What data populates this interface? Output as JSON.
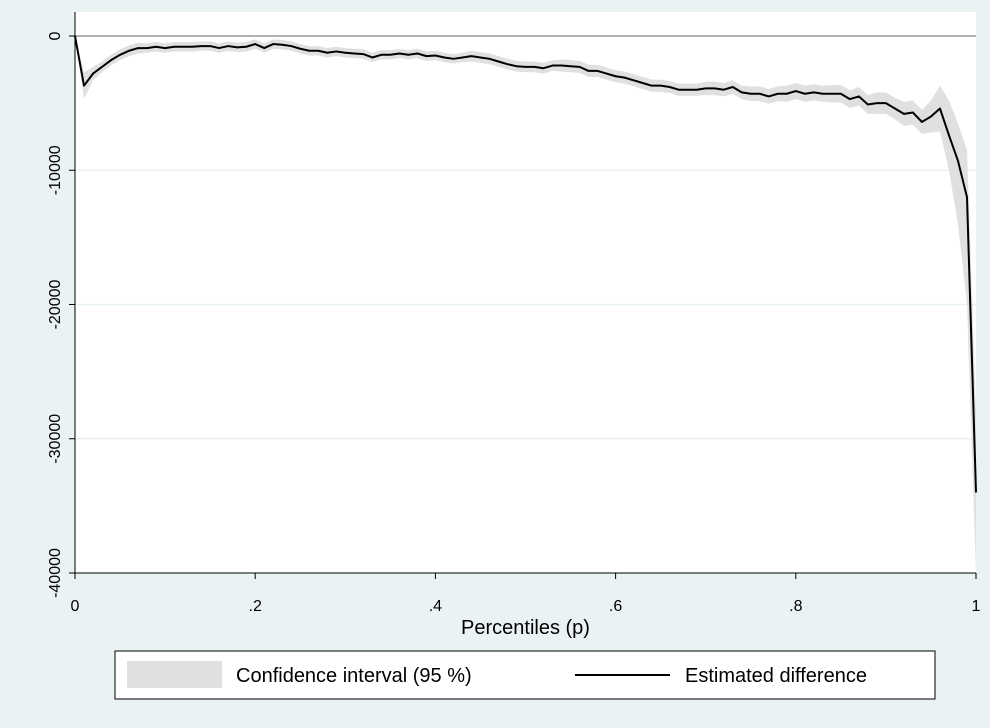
{
  "chart_data": {
    "type": "line",
    "title": "",
    "xlabel": "Percentiles (p)",
    "ylabel": "",
    "xlim": [
      0,
      1
    ],
    "ylim": [
      -40000,
      0
    ],
    "grid": "horizontal",
    "legend_position": "bottom",
    "x_ticks": [
      {
        "value": 0,
        "label": "0"
      },
      {
        "value": 0.2,
        "label": ".2"
      },
      {
        "value": 0.4,
        "label": ".4"
      },
      {
        "value": 0.6,
        "label": ".6"
      },
      {
        "value": 0.8,
        "label": ".8"
      },
      {
        "value": 1,
        "label": "1"
      }
    ],
    "y_ticks": [
      {
        "value": 0,
        "label": "0"
      },
      {
        "value": -10000,
        "label": "-10000"
      },
      {
        "value": -20000,
        "label": "-20000"
      },
      {
        "value": -30000,
        "label": "-30000"
      },
      {
        "value": -40000,
        "label": "-40000"
      }
    ],
    "reference_line_y": 0,
    "colors": {
      "background": "#eaf2f3",
      "plot_background": "#ffffff",
      "gridline": "#e8f1f2",
      "reference_line": "#999999",
      "band": "#e0e0e0",
      "line": "#000000"
    },
    "series": [
      {
        "name": "Estimated difference",
        "x": [
          0,
          0.01,
          0.02,
          0.03,
          0.04,
          0.05,
          0.06,
          0.07,
          0.08,
          0.09,
          0.1,
          0.11,
          0.12,
          0.13,
          0.14,
          0.15,
          0.16,
          0.17,
          0.18,
          0.19,
          0.2,
          0.21,
          0.22,
          0.23,
          0.24,
          0.25,
          0.26,
          0.27,
          0.28,
          0.29,
          0.3,
          0.31,
          0.32,
          0.33,
          0.34,
          0.35,
          0.36,
          0.37,
          0.38,
          0.39,
          0.4,
          0.41,
          0.42,
          0.43,
          0.44,
          0.45,
          0.46,
          0.47,
          0.48,
          0.49,
          0.5,
          0.51,
          0.52,
          0.53,
          0.54,
          0.55,
          0.56,
          0.57,
          0.58,
          0.59,
          0.6,
          0.61,
          0.62,
          0.63,
          0.64,
          0.65,
          0.66,
          0.67,
          0.68,
          0.69,
          0.7,
          0.71,
          0.72,
          0.73,
          0.74,
          0.75,
          0.76,
          0.77,
          0.78,
          0.79,
          0.8,
          0.81,
          0.82,
          0.83,
          0.84,
          0.85,
          0.86,
          0.87,
          0.88,
          0.89,
          0.9,
          0.91,
          0.92,
          0.93,
          0.94,
          0.95,
          0.96,
          0.97,
          0.98,
          0.99,
          1.0
        ],
        "y": [
          0,
          -3700,
          -2800,
          -2300,
          -1800,
          -1400,
          -1100,
          -900,
          -900,
          -800,
          -900,
          -800,
          -800,
          -800,
          -750,
          -750,
          -900,
          -750,
          -850,
          -800,
          -600,
          -900,
          -600,
          -650,
          -750,
          -950,
          -1100,
          -1100,
          -1250,
          -1150,
          -1250,
          -1300,
          -1350,
          -1600,
          -1400,
          -1400,
          -1300,
          -1400,
          -1300,
          -1500,
          -1450,
          -1600,
          -1700,
          -1600,
          -1500,
          -1600,
          -1700,
          -1900,
          -2100,
          -2250,
          -2300,
          -2300,
          -2400,
          -2200,
          -2200,
          -2250,
          -2300,
          -2600,
          -2600,
          -2800,
          -3000,
          -3100,
          -3300,
          -3500,
          -3700,
          -3700,
          -3800,
          -4000,
          -4000,
          -4000,
          -3900,
          -3900,
          -4000,
          -3800,
          -4200,
          -4300,
          -4300,
          -4500,
          -4300,
          -4300,
          -4100,
          -4300,
          -4200,
          -4300,
          -4300,
          -4300,
          -4700,
          -4500,
          -5100,
          -5000,
          -5000,
          -5400,
          -5800,
          -5700,
          -6400,
          -6000,
          -5400,
          -7400,
          -9300,
          -12000,
          -34000
        ]
      }
    ],
    "bands": [
      {
        "name": "Confidence interval (95 %)",
        "lower": [
          0,
          -4700,
          -3300,
          -2700,
          -2200,
          -1800,
          -1500,
          -1300,
          -1250,
          -1150,
          -1250,
          -1150,
          -1150,
          -1150,
          -1100,
          -1100,
          -1250,
          -1100,
          -1200,
          -1150,
          -950,
          -1250,
          -950,
          -1000,
          -1100,
          -1300,
          -1450,
          -1450,
          -1600,
          -1500,
          -1600,
          -1650,
          -1700,
          -1950,
          -1750,
          -1750,
          -1650,
          -1750,
          -1650,
          -1850,
          -1800,
          -1950,
          -2050,
          -1950,
          -1900,
          -2000,
          -2100,
          -2300,
          -2500,
          -2650,
          -2700,
          -2700,
          -2800,
          -2600,
          -2650,
          -2700,
          -2750,
          -3050,
          -3050,
          -3250,
          -3450,
          -3550,
          -3750,
          -3950,
          -4150,
          -4150,
          -4250,
          -4450,
          -4450,
          -4450,
          -4400,
          -4400,
          -4500,
          -4300,
          -4700,
          -4850,
          -4850,
          -5050,
          -4850,
          -4900,
          -4700,
          -4900,
          -4800,
          -4900,
          -4950,
          -4950,
          -5350,
          -5200,
          -5800,
          -5800,
          -5800,
          -6200,
          -6700,
          -6600,
          -7300,
          -7200,
          -7100,
          -10000,
          -14000,
          -20000,
          -40000
        ],
        "upper": [
          0,
          -2700,
          -2300,
          -1900,
          -1400,
          -1000,
          -700,
          -500,
          -550,
          -450,
          -550,
          -450,
          -450,
          -450,
          -400,
          -400,
          -550,
          -400,
          -500,
          -450,
          -250,
          -550,
          -250,
          -300,
          -400,
          -600,
          -750,
          -750,
          -900,
          -800,
          -900,
          -950,
          -1000,
          -1250,
          -1050,
          -1050,
          -950,
          -1050,
          -950,
          -1150,
          -1100,
          -1250,
          -1350,
          -1250,
          -1100,
          -1200,
          -1300,
          -1500,
          -1700,
          -1850,
          -1900,
          -1900,
          -2000,
          -1800,
          -1750,
          -1800,
          -1850,
          -2150,
          -2150,
          -2350,
          -2550,
          -2650,
          -2850,
          -3050,
          -3250,
          -3250,
          -3350,
          -3550,
          -3550,
          -3550,
          -3400,
          -3400,
          -3500,
          -3300,
          -3700,
          -3750,
          -3750,
          -3950,
          -3750,
          -3700,
          -3500,
          -3700,
          -3600,
          -3700,
          -3650,
          -3650,
          -4050,
          -3800,
          -4400,
          -4200,
          -4200,
          -4600,
          -4900,
          -4800,
          -5500,
          -4800,
          -3700,
          -4800,
          -6500,
          -8500,
          -28000
        ]
      }
    ]
  }
}
